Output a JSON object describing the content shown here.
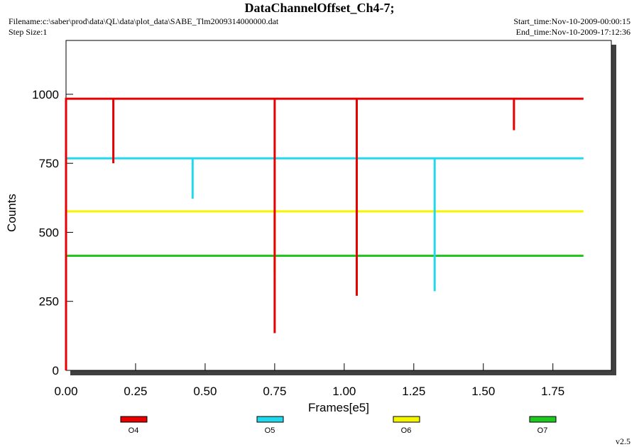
{
  "header": {
    "filename": "Filename:c:\\saber\\prod\\data\\QL\\data\\plot_data\\SABE_Tlm2009314000000.dat",
    "step_size": "Step Size:1",
    "start_time": "Start_time:Nov-10-2009-00:00:15",
    "end_time": "End_time:Nov-10-2009-17:12:36",
    "version": "v2.5"
  },
  "chart_data": {
    "type": "line",
    "title": "DataChannelOffset_Ch4-7;",
    "x_label": "Frames[e5]",
    "y_label": "Counts",
    "xlim": [
      0,
      1.96
    ],
    "ylim": [
      0,
      1195
    ],
    "xticks": [
      {
        "value": 0,
        "label": "0.00"
      },
      {
        "value": 0.25,
        "label": "0.25"
      },
      {
        "value": 0.5,
        "label": "0.50"
      },
      {
        "value": 0.75,
        "label": "0.75"
      },
      {
        "value": 1,
        "label": "1.00"
      },
      {
        "value": 1.25,
        "label": "1.25"
      },
      {
        "value": 1.5,
        "label": "1.50"
      },
      {
        "value": 1.75,
        "label": "1.75"
      }
    ],
    "yticks": [
      0,
      250,
      500,
      750,
      1000
    ],
    "series": [
      {
        "name": "O4",
        "color": "#e60000",
        "x": [
          0,
          0,
          0.17,
          0.17,
          0.17,
          0.75,
          0.75,
          0.75,
          1.045,
          1.045,
          1.045,
          1.61,
          1.61,
          1.61,
          1.86
        ],
        "values": [
          0,
          984,
          984,
          750,
          984,
          984,
          135,
          984,
          984,
          270,
          984,
          984,
          870,
          984,
          984
        ]
      },
      {
        "name": "O5",
        "color": "#22d8ec",
        "x": [
          0,
          0,
          0.455,
          0.455,
          0.455,
          1.325,
          1.325,
          1.325,
          1.86
        ],
        "values": [
          0,
          768,
          768,
          622,
          768,
          768,
          287,
          768,
          768
        ]
      },
      {
        "name": "O6",
        "color": "#f5f500",
        "x": [
          0,
          0,
          0.75,
          0.75,
          0.75,
          1.86
        ],
        "values": [
          0,
          576,
          576,
          348,
          576,
          576
        ]
      },
      {
        "name": "O7",
        "color": "#1ec81e",
        "x": [
          0,
          0,
          1.86
        ],
        "values": [
          0,
          415,
          415
        ]
      }
    ]
  }
}
